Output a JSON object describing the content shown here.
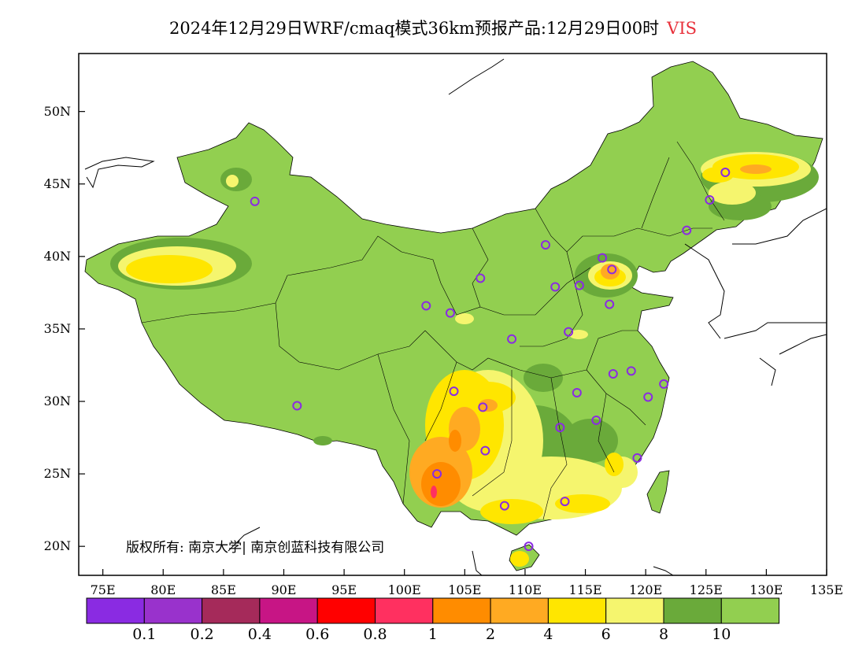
{
  "title": {
    "main": "2024年12月29日WRF/cmaq模式36km预报产品:12月29日00时",
    "variable": "VIS"
  },
  "map": {
    "lon_range": [
      73,
      135
    ],
    "lat_range": [
      18,
      54
    ],
    "lat_ticks": [
      "20N",
      "25N",
      "30N",
      "35N",
      "40N",
      "45N",
      "50N"
    ],
    "lat_tick_values": [
      20,
      25,
      30,
      35,
      40,
      45,
      50
    ],
    "lon_ticks": [
      "75E",
      "80E",
      "85E",
      "90E",
      "95E",
      "100E",
      "105E",
      "110E",
      "115E",
      "120E",
      "125E",
      "130E",
      "135E"
    ],
    "lon_tick_values": [
      75,
      80,
      85,
      90,
      95,
      100,
      105,
      110,
      115,
      120,
      125,
      130,
      135
    ],
    "land_color": "#92cf50",
    "station_color": "#8a2be2",
    "stations": [
      {
        "lon": 87.6,
        "lat": 43.8
      },
      {
        "lon": 91.1,
        "lat": 29.7
      },
      {
        "lon": 101.8,
        "lat": 36.6
      },
      {
        "lon": 103.8,
        "lat": 36.1
      },
      {
        "lon": 106.3,
        "lat": 38.5
      },
      {
        "lon": 111.7,
        "lat": 40.8
      },
      {
        "lon": 112.5,
        "lat": 37.9
      },
      {
        "lon": 114.5,
        "lat": 38.0
      },
      {
        "lon": 116.4,
        "lat": 39.9
      },
      {
        "lon": 117.2,
        "lat": 39.1
      },
      {
        "lon": 117.0,
        "lat": 36.7
      },
      {
        "lon": 113.6,
        "lat": 34.8
      },
      {
        "lon": 108.9,
        "lat": 34.3
      },
      {
        "lon": 104.1,
        "lat": 30.7
      },
      {
        "lon": 106.5,
        "lat": 29.6
      },
      {
        "lon": 106.7,
        "lat": 26.6
      },
      {
        "lon": 102.7,
        "lat": 25.0
      },
      {
        "lon": 108.3,
        "lat": 22.8
      },
      {
        "lon": 113.3,
        "lat": 23.1
      },
      {
        "lon": 110.3,
        "lat": 20.0
      },
      {
        "lon": 112.9,
        "lat": 28.2
      },
      {
        "lon": 114.3,
        "lat": 30.6
      },
      {
        "lon": 115.9,
        "lat": 28.7
      },
      {
        "lon": 117.3,
        "lat": 31.9
      },
      {
        "lon": 118.8,
        "lat": 32.1
      },
      {
        "lon": 120.2,
        "lat": 30.3
      },
      {
        "lon": 121.5,
        "lat": 31.2
      },
      {
        "lon": 119.3,
        "lat": 26.1
      },
      {
        "lon": 123.4,
        "lat": 41.8
      },
      {
        "lon": 125.3,
        "lat": 43.9
      },
      {
        "lon": 126.6,
        "lat": 45.8
      }
    ]
  },
  "copyright": "版权所有: 南京大学| 南京创蓝科技有限公司",
  "colorbar": {
    "colors": [
      "#8a2be2",
      "#9932cc",
      "#a52a5a",
      "#c71585",
      "#ff0000",
      "#ff3060",
      "#ff8c00",
      "#ffaa22",
      "#ffe600",
      "#f5f56e",
      "#6aaa3a",
      "#92cf50"
    ],
    "labels": [
      "0.1",
      "0.2",
      "0.4",
      "0.6",
      "0.8",
      "1",
      "2",
      "4",
      "6",
      "8",
      "10"
    ]
  }
}
